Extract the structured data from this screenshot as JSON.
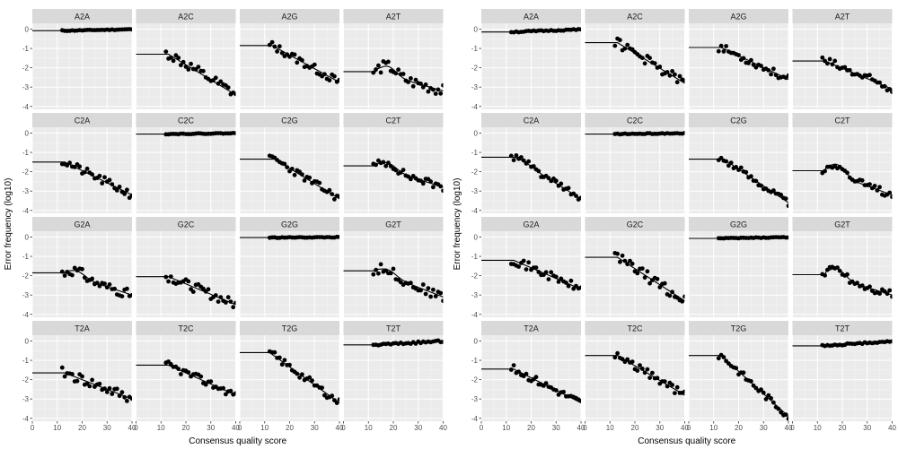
{
  "chart_data": [
    {
      "type": "scatter",
      "facet_rows": [
        "A",
        "C",
        "G",
        "T"
      ],
      "facet_cols": [
        "A",
        "C",
        "G",
        "T"
      ],
      "xlabel": "Consensus quality score",
      "ylabel": "Error frequency (log10)",
      "xlim": [
        0,
        40
      ],
      "ylim": [
        -4.15,
        0.3
      ],
      "x_ticks": [
        0,
        10,
        20,
        30,
        40
      ],
      "y_ticks": [
        0,
        -1,
        -2,
        -3,
        -4
      ],
      "grid": true,
      "panels": [
        {
          "title": "A2A",
          "start": -0.08,
          "plateau_end": 14,
          "end": -0.01,
          "peak": null,
          "jitter": 0.02,
          "seed": 11
        },
        {
          "title": "A2C",
          "start": -1.3,
          "plateau_end": 13,
          "end": -3.4,
          "peak": null,
          "jitter": 0.28,
          "seed": 12
        },
        {
          "title": "A2G",
          "start": -0.85,
          "plateau_end": 13,
          "end": -2.75,
          "peak": null,
          "jitter": 0.22,
          "seed": 13
        },
        {
          "title": "A2T",
          "start": -2.2,
          "plateau_end": 13,
          "end": -3.2,
          "peak": -1.75,
          "jitter": 0.3,
          "seed": 14
        },
        {
          "title": "C2A",
          "start": -1.5,
          "plateau_end": 13,
          "end": -3.2,
          "peak": null,
          "jitter": 0.22,
          "seed": 21
        },
        {
          "title": "C2C",
          "start": -0.05,
          "plateau_end": 13,
          "end": -0.01,
          "peak": null,
          "jitter": 0.02,
          "seed": 22
        },
        {
          "title": "C2G",
          "start": -1.35,
          "plateau_end": 14,
          "end": -3.4,
          "peak": null,
          "jitter": 0.2,
          "seed": 23
        },
        {
          "title": "C2T",
          "start": -1.7,
          "plateau_end": 13,
          "end": -2.8,
          "peak": -1.35,
          "jitter": 0.2,
          "seed": 24
        },
        {
          "title": "G2A",
          "start": -1.85,
          "plateau_end": 13,
          "end": -3.0,
          "peak": -1.55,
          "jitter": 0.25,
          "seed": 31
        },
        {
          "title": "G2C",
          "start": -2.05,
          "plateau_end": 13,
          "end": -3.5,
          "peak": null,
          "jitter": 0.25,
          "seed": 32
        },
        {
          "title": "G2G",
          "start": -0.03,
          "plateau_end": 13,
          "end": -0.01,
          "peak": null,
          "jitter": 0.02,
          "seed": 33
        },
        {
          "title": "G2T",
          "start": -1.75,
          "plateau_end": 13,
          "end": -3.1,
          "peak": -1.45,
          "jitter": 0.25,
          "seed": 34
        },
        {
          "title": "T2A",
          "start": -1.65,
          "plateau_end": 13,
          "end": -3.0,
          "peak": null,
          "jitter": 0.28,
          "seed": 41
        },
        {
          "title": "T2C",
          "start": -1.25,
          "plateau_end": 13,
          "end": -2.8,
          "peak": null,
          "jitter": 0.2,
          "seed": 42
        },
        {
          "title": "T2G",
          "start": -0.6,
          "plateau_end": 12,
          "end": -3.2,
          "peak": null,
          "jitter": 0.2,
          "seed": 43
        },
        {
          "title": "T2T",
          "start": -0.2,
          "plateau_end": 13,
          "end": -0.01,
          "peak": null,
          "jitter": 0.05,
          "seed": 44
        }
      ]
    },
    {
      "type": "scatter",
      "facet_rows": [
        "A",
        "C",
        "G",
        "T"
      ],
      "facet_cols": [
        "A",
        "C",
        "G",
        "T"
      ],
      "xlabel": "Consensus quality score",
      "ylabel": "Error frequency (log10)",
      "xlim": [
        0,
        40
      ],
      "ylim": [
        -4.15,
        0.3
      ],
      "x_ticks": [
        0,
        10,
        20,
        30,
        40
      ],
      "y_ticks": [
        0,
        -1,
        -2,
        -3,
        -4
      ],
      "grid": true,
      "panels": [
        {
          "title": "A2A",
          "start": -0.15,
          "plateau_end": 12,
          "end": -0.02,
          "peak": null,
          "jitter": 0.03,
          "seed": 51
        },
        {
          "title": "A2C",
          "start": -0.7,
          "plateau_end": 13,
          "end": -2.8,
          "peak": null,
          "jitter": 0.25,
          "seed": 52
        },
        {
          "title": "A2G",
          "start": -0.95,
          "plateau_end": 13,
          "end": -2.6,
          "peak": null,
          "jitter": 0.2,
          "seed": 53
        },
        {
          "title": "A2T",
          "start": -1.65,
          "plateau_end": 13,
          "end": -3.1,
          "peak": null,
          "jitter": 0.25,
          "seed": 54
        },
        {
          "title": "C2A",
          "start": -1.25,
          "plateau_end": 13,
          "end": -3.4,
          "peak": -1.15,
          "jitter": 0.18,
          "seed": 61
        },
        {
          "title": "C2C",
          "start": -0.05,
          "plateau_end": 13,
          "end": -0.01,
          "peak": null,
          "jitter": 0.02,
          "seed": 62
        },
        {
          "title": "C2G",
          "start": -1.35,
          "plateau_end": 14,
          "end": -3.6,
          "peak": null,
          "jitter": 0.18,
          "seed": 63
        },
        {
          "title": "C2T",
          "start": -1.95,
          "plateau_end": 13,
          "end": -3.2,
          "peak": -1.4,
          "jitter": 0.2,
          "seed": 64
        },
        {
          "title": "G2A",
          "start": -1.2,
          "plateau_end": 13,
          "end": -2.7,
          "peak": null,
          "jitter": 0.22,
          "seed": 71
        },
        {
          "title": "G2C",
          "start": -1.05,
          "plateau_end": 13,
          "end": -3.3,
          "peak": null,
          "jitter": 0.28,
          "seed": 72
        },
        {
          "title": "G2G",
          "start": -0.07,
          "plateau_end": 13,
          "end": -0.01,
          "peak": null,
          "jitter": 0.02,
          "seed": 73
        },
        {
          "title": "G2T",
          "start": -1.95,
          "plateau_end": 13,
          "end": -3.0,
          "peak": -1.45,
          "jitter": 0.22,
          "seed": 74
        },
        {
          "title": "T2A",
          "start": -1.45,
          "plateau_end": 13,
          "end": -3.2,
          "peak": null,
          "jitter": 0.2,
          "seed": 81
        },
        {
          "title": "T2C",
          "start": -0.75,
          "plateau_end": 13,
          "end": -2.8,
          "peak": null,
          "jitter": 0.2,
          "seed": 82
        },
        {
          "title": "T2G",
          "start": -0.75,
          "plateau_end": 13,
          "end": -3.9,
          "peak": null,
          "jitter": 0.18,
          "seed": 83
        },
        {
          "title": "T2T",
          "start": -0.25,
          "plateau_end": 13,
          "end": -0.01,
          "peak": null,
          "jitter": 0.04,
          "seed": 84
        }
      ]
    }
  ]
}
